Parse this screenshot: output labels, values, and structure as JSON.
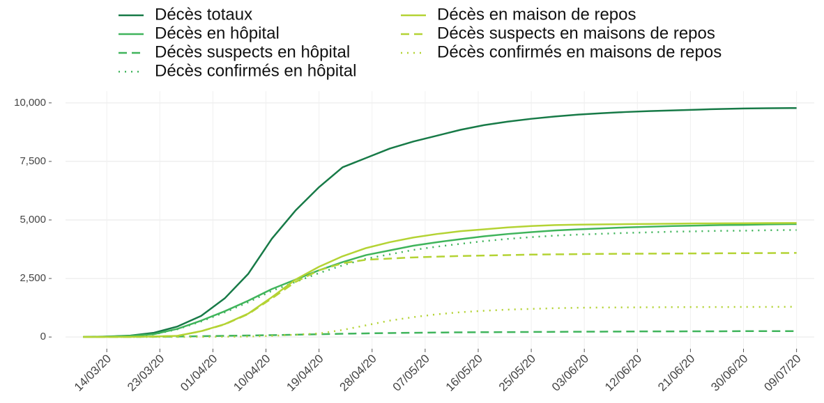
{
  "chart_data": {
    "type": "line",
    "x": [
      "10/03/20",
      "14/03/20",
      "18/03/20",
      "22/03/20",
      "26/03/20",
      "30/03/20",
      "03/04/20",
      "07/04/20",
      "11/04/20",
      "15/04/20",
      "19/04/20",
      "23/04/20",
      "27/04/20",
      "01/05/20",
      "05/05/20",
      "09/05/20",
      "13/05/20",
      "17/05/20",
      "21/05/20",
      "25/05/20",
      "29/05/20",
      "02/06/20",
      "06/06/20",
      "10/06/20",
      "14/06/20",
      "18/06/20",
      "22/06/20",
      "26/06/20",
      "30/06/20",
      "04/07/20",
      "08/07/20",
      "09/07/20"
    ],
    "series": [
      {
        "name": "Décès totaux",
        "color": "#177a47",
        "dash": "solid",
        "values": [
          0,
          20,
          60,
          180,
          450,
          900,
          1650,
          2700,
          4200,
          5400,
          6400,
          7250,
          7650,
          8050,
          8350,
          8600,
          8850,
          9050,
          9200,
          9320,
          9420,
          9500,
          9560,
          9610,
          9650,
          9680,
          9710,
          9740,
          9760,
          9770,
          9780,
          9780
        ]
      },
      {
        "name": "Décès en hôpital",
        "color": "#3fb45b",
        "dash": "solid",
        "values": [
          0,
          15,
          50,
          120,
          350,
          700,
          1100,
          1550,
          2050,
          2450,
          2850,
          3200,
          3500,
          3700,
          3900,
          4050,
          4180,
          4300,
          4400,
          4480,
          4550,
          4600,
          4640,
          4680,
          4710,
          4740,
          4760,
          4780,
          4790,
          4810,
          4820,
          4820
        ]
      },
      {
        "name": "Décès suspects en hôpital",
        "color": "#3fb45b",
        "dash": "dash",
        "values": [
          0,
          2,
          5,
          10,
          20,
          35,
          50,
          65,
          80,
          100,
          120,
          140,
          155,
          170,
          180,
          190,
          200,
          205,
          210,
          215,
          220,
          225,
          230,
          235,
          240,
          240,
          245,
          245,
          250,
          250,
          250,
          250
        ]
      },
      {
        "name": "Décès confirmés en hôpital",
        "color": "#3fb45b",
        "dash": "dot",
        "values": [
          0,
          13,
          45,
          110,
          330,
          665,
          1050,
          1485,
          1970,
          2350,
          2730,
          3060,
          3345,
          3530,
          3720,
          3860,
          3980,
          4095,
          4190,
          4265,
          4330,
          4375,
          4410,
          4445,
          4470,
          4500,
          4515,
          4535,
          4540,
          4560,
          4570,
          4570
        ]
      },
      {
        "name": "Décès en maison de repos",
        "color": "#b4d334",
        "dash": "solid",
        "values": [
          0,
          0,
          5,
          20,
          50,
          250,
          550,
          1000,
          1700,
          2450,
          3000,
          3450,
          3800,
          4050,
          4250,
          4400,
          4520,
          4600,
          4680,
          4740,
          4780,
          4800,
          4810,
          4820,
          4830,
          4840,
          4850,
          4855,
          4860,
          4865,
          4870,
          4870
        ]
      },
      {
        "name": "Décès suspects en maisons de repos",
        "color": "#b4d334",
        "dash": "dash",
        "values": [
          0,
          0,
          5,
          20,
          50,
          245,
          540,
          980,
          1650,
          2350,
          2850,
          3150,
          3300,
          3350,
          3400,
          3430,
          3460,
          3480,
          3500,
          3520,
          3530,
          3540,
          3550,
          3555,
          3560,
          3565,
          3570,
          3575,
          3580,
          3585,
          3590,
          3590
        ]
      },
      {
        "name": "Décès confirmés en maisons de repos",
        "color": "#b4d334",
        "dash": "dot",
        "values": [
          0,
          0,
          0,
          0,
          0,
          5,
          10,
          20,
          50,
          100,
          150,
          300,
          500,
          700,
          850,
          970,
          1060,
          1120,
          1170,
          1200,
          1230,
          1250,
          1260,
          1265,
          1270,
          1275,
          1280,
          1280,
          1285,
          1285,
          1290,
          1290
        ]
      }
    ],
    "xlim": [
      "07/03/20",
      "12/07/20"
    ],
    "xticks": [
      "14/03/20",
      "23/03/20",
      "01/04/20",
      "10/04/20",
      "19/04/20",
      "28/04/20",
      "07/05/20",
      "16/05/20",
      "25/05/20",
      "03/06/20",
      "12/06/20",
      "21/06/20",
      "30/06/20",
      "09/07/20"
    ],
    "ylim": [
      -500,
      10500
    ],
    "yticks": [
      0,
      {
        "value": 2500,
        "label": "2,500"
      },
      {
        "value": 5000,
        "label": "5,000"
      },
      {
        "value": 7500,
        "label": "7,500"
      },
      {
        "value": 10000,
        "label": "10,000"
      }
    ],
    "grid": true,
    "legend": "top"
  }
}
